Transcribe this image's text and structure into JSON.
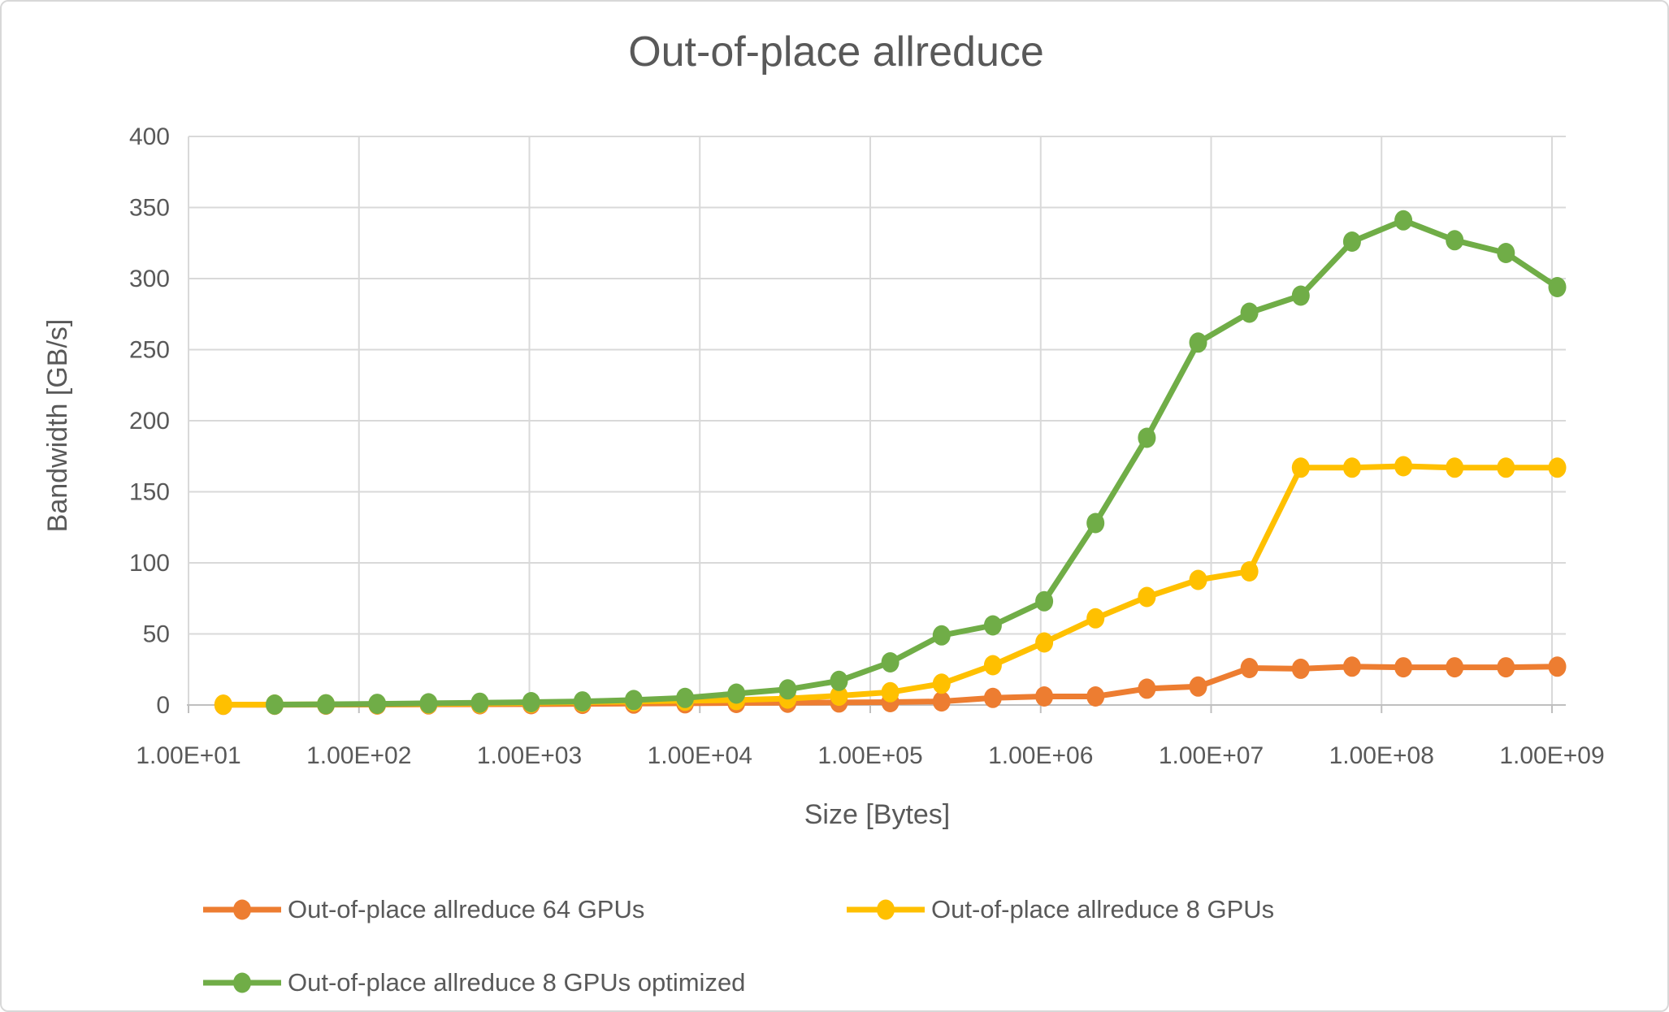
{
  "chart_data": {
    "type": "line",
    "title": "Out-of-place allreduce",
    "xlabel": "Size [Bytes]",
    "ylabel": "Bandwidth [GB/s]",
    "x_scale": "log",
    "grid": true,
    "legend_position": "bottom",
    "ylim": [
      0,
      400
    ],
    "y_ticks": [
      0,
      50,
      100,
      150,
      200,
      250,
      300,
      350,
      400
    ],
    "x_ticks": [
      10,
      100,
      1000,
      10000,
      100000,
      1000000,
      10000000,
      100000000,
      1000000000
    ],
    "x_tick_labels": [
      "1.00E+01",
      "1.00E+02",
      "1.00E+03",
      "1.00E+04",
      "1.00E+05",
      "1.00E+06",
      "1.00E+07",
      "1.00E+08",
      "1.00E+09"
    ],
    "sizes_bytes": [
      16,
      32,
      64,
      128,
      256,
      512,
      1024,
      2048,
      4096,
      8192,
      16384,
      32768,
      65536,
      131072,
      262144,
      524288,
      1048576,
      2097152,
      4194304,
      8388608,
      16777216,
      33554432,
      67108864,
      134217728,
      268435456,
      536870912,
      1073741824
    ],
    "series": [
      {
        "name": "Out-of-place allreduce 64 GPUs",
        "color": "#ED7D31",
        "values": [
          0.1,
          0.15,
          0.2,
          0.3,
          0.4,
          0.5,
          0.6,
          0.8,
          1.0,
          1.2,
          1.4,
          1.6,
          1.8,
          2.0,
          2.5,
          5.0,
          6.0,
          6.0,
          11.5,
          13.0,
          26.0,
          25.5,
          27.0,
          26.5,
          26.5,
          26.5,
          27.0
        ]
      },
      {
        "name": "Out-of-place allreduce 8 GPUs",
        "color": "#FFC000",
        "values": [
          0.2,
          0.3,
          0.45,
          0.6,
          0.8,
          1.1,
          1.5,
          2.0,
          2.5,
          3.0,
          3.5,
          4.5,
          6.5,
          9.0,
          15.0,
          28.0,
          44.0,
          61.0,
          76.0,
          88.0,
          94.0,
          167.0,
          167.0,
          168.0,
          167.0,
          167.0,
          167.0
        ]
      },
      {
        "name": "Out-of-place allreduce 8 GPUs optimized",
        "color": "#70AD47",
        "values": [
          null,
          0.3,
          0.5,
          0.8,
          1.2,
          1.6,
          2.0,
          2.5,
          3.5,
          5.0,
          8.0,
          11.0,
          17.0,
          30.0,
          49.0,
          56.0,
          73.0,
          128.0,
          188.0,
          255.0,
          276.0,
          288.0,
          326.0,
          341.0,
          327.0,
          318.0,
          294.0
        ]
      }
    ],
    "text_color": "#595959",
    "gridline_color": "#D9D9D9",
    "axis_color": "#BFBFBF"
  }
}
